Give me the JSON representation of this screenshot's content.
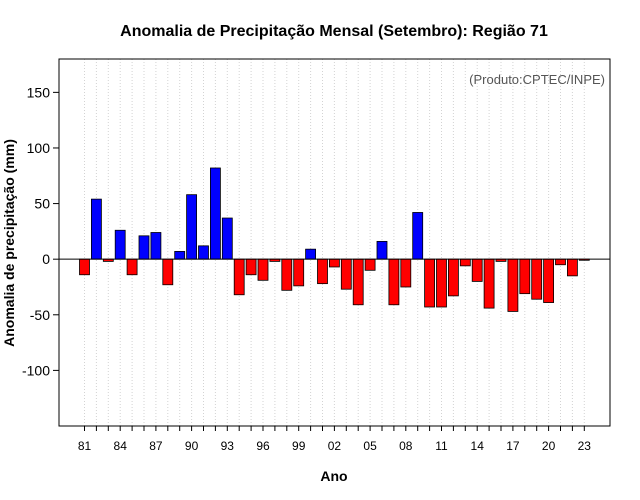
{
  "chart_data": {
    "type": "bar",
    "title": "Anomalia de Precipitação Mensal (Setembro): Região 71",
    "xlabel": "Ano",
    "ylabel": "Anomalia de precipitação (mm)",
    "annotation": "(Produto:CPTEC/INPE)",
    "ylim": [
      -150,
      180
    ],
    "yticks": [
      -100,
      -50,
      0,
      50,
      100,
      150
    ],
    "ytick_labels": [
      "-100",
      "-50",
      "0",
      "50",
      "100",
      "150"
    ],
    "xtick_labels": [
      "81",
      "84",
      "87",
      "90",
      "93",
      "96",
      "99",
      "02",
      "05",
      "08",
      "11",
      "14",
      "17",
      "20",
      "23"
    ],
    "colors": {
      "positive": "#0000ff",
      "negative": "#ff0000",
      "outline": "#000000",
      "grid": "#d3d3d3"
    },
    "categories": [
      "1981",
      "1982",
      "1983",
      "1984",
      "1985",
      "1986",
      "1987",
      "1988",
      "1989",
      "1990",
      "1991",
      "1992",
      "1993",
      "1994",
      "1995",
      "1996",
      "1997",
      "1998",
      "1999",
      "2000",
      "2001",
      "2002",
      "2003",
      "2004",
      "2005",
      "2006",
      "2007",
      "2008",
      "2009",
      "2010",
      "2011",
      "2012",
      "2013",
      "2014",
      "2015",
      "2016",
      "2017",
      "2018",
      "2019",
      "2020",
      "2021",
      "2022",
      "2023"
    ],
    "values": [
      -14,
      54,
      -2,
      26,
      -14,
      21,
      24,
      -23,
      7,
      58,
      12,
      82,
      37,
      -32,
      -14,
      -19,
      -2,
      -28,
      -24,
      9,
      -22,
      -7,
      -27,
      -41,
      -10,
      16,
      -41,
      -25,
      42,
      -43,
      -43,
      -33,
      -6,
      -20,
      -44,
      -2,
      -47,
      -31,
      -36,
      -39,
      -5,
      -15,
      -1
    ]
  }
}
